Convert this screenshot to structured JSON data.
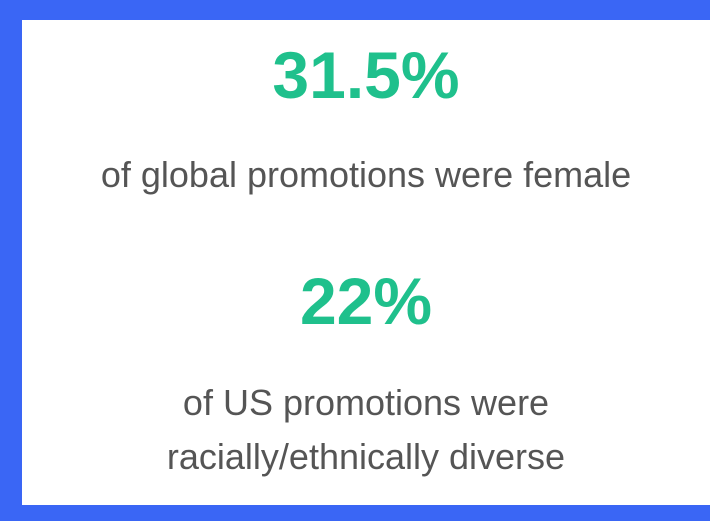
{
  "stats": [
    {
      "value": "31.5%",
      "caption": [
        "of global promotions were female"
      ]
    },
    {
      "value": "22%",
      "caption": [
        "of US promotions were",
        "racially/ethnically diverse"
      ]
    }
  ]
}
